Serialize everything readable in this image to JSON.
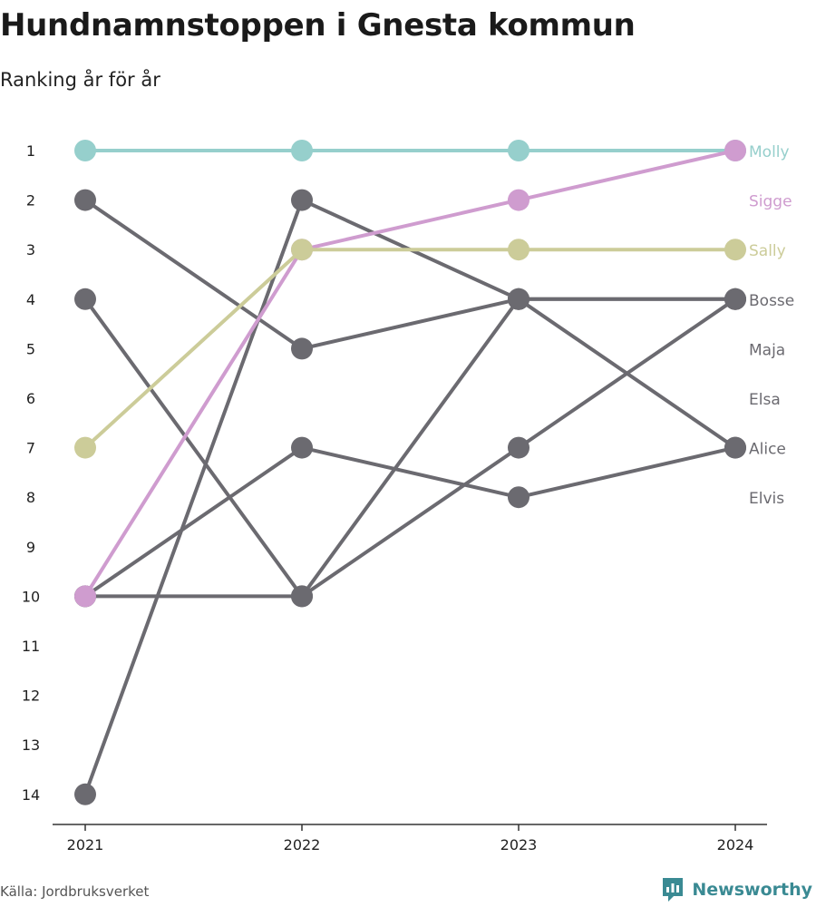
{
  "header": {
    "title": "Hundnamnstoppen i Gnesta kommun",
    "subtitle": "Ranking år för år"
  },
  "footer": {
    "source": "Källa: Jordbruksverket",
    "brand": "Newsworthy"
  },
  "colors": {
    "molly": "#96cfcc",
    "sigge": "#cf9ccf",
    "sally": "#cccc99",
    "default": "#6b6a70",
    "axis": "#333333",
    "brand": "#3a8a93"
  },
  "chart_data": {
    "type": "line",
    "title": "Hundnamnstoppen i Gnesta kommun",
    "subtitle": "Ranking år för år",
    "x": [
      "2021",
      "2022",
      "2023",
      "2024"
    ],
    "y_ticks": [
      1,
      2,
      3,
      4,
      5,
      6,
      7,
      8,
      9,
      10,
      11,
      12,
      13,
      14
    ],
    "ylim": [
      1,
      14
    ],
    "y_reversed": true,
    "grid": false,
    "legend": "direct labels right",
    "series": [
      {
        "name": "Molly",
        "values": [
          1,
          1,
          1,
          1
        ],
        "color": "#96cfcc"
      },
      {
        "name": "Sigge",
        "values": [
          10,
          3,
          2,
          1
        ],
        "color": "#cf9ccf"
      },
      {
        "name": "Sally",
        "values": [
          7,
          3,
          3,
          3
        ],
        "color": "#cccc99"
      },
      {
        "name": "Bosse",
        "values": [
          14,
          2,
          4,
          4
        ],
        "color": "#6b6a70"
      },
      {
        "name": "Maja",
        "values": [
          10,
          10,
          4,
          4
        ],
        "color": "#6b6a70"
      },
      {
        "name": "Elsa",
        "values": [
          2,
          5,
          4,
          7
        ],
        "color": "#6b6a70"
      },
      {
        "name": "Alice",
        "values": [
          4,
          10,
          7,
          4
        ],
        "color": "#6b6a70"
      },
      {
        "name": "Elvis",
        "values": [
          10,
          7,
          8,
          7
        ],
        "color": "#6b6a70"
      }
    ]
  }
}
